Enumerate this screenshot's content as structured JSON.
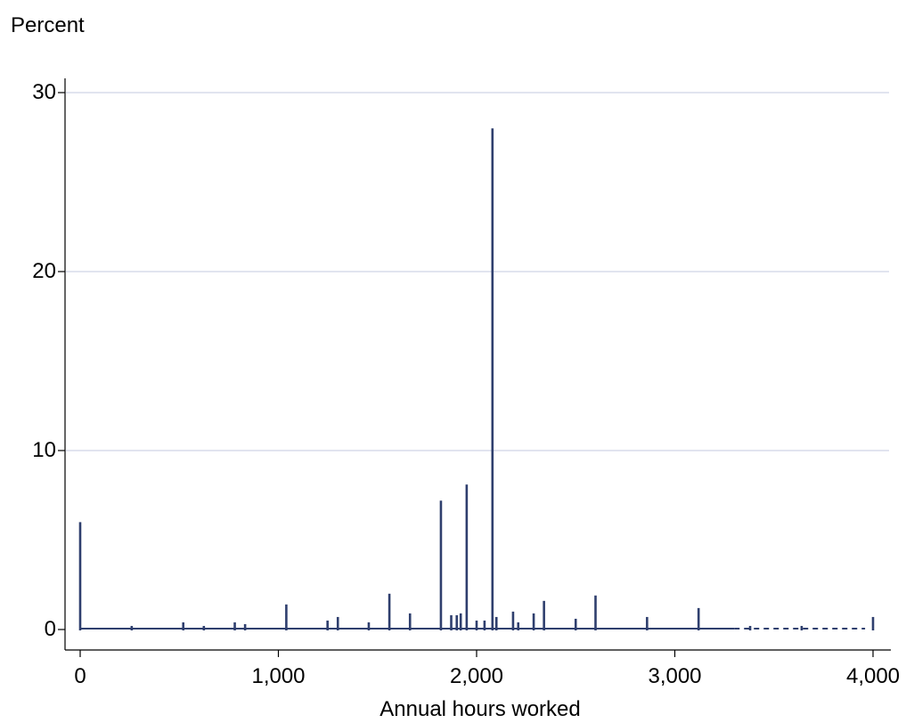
{
  "chart_data": {
    "type": "bar",
    "title": "",
    "ylabel": "Percent",
    "xlabel": "Annual hours worked",
    "xlim": [
      0,
      4000
    ],
    "ylim": [
      0,
      30
    ],
    "xticks": [
      0,
      1000,
      2000,
      3000,
      4000
    ],
    "xtick_labels": [
      "0",
      "1,000",
      "2,000",
      "3,000",
      "4,000"
    ],
    "yticks": [
      0,
      10,
      20,
      30
    ],
    "ytick_labels": [
      "0",
      "10",
      "20",
      "30"
    ],
    "grid": true,
    "legend": "none",
    "bar_color": "#2f3f6e",
    "grid_color": "#e1e4ef",
    "spikes": [
      {
        "x": 0,
        "y": 6.0
      },
      {
        "x": 260,
        "y": 0.2
      },
      {
        "x": 520,
        "y": 0.4
      },
      {
        "x": 624,
        "y": 0.2
      },
      {
        "x": 780,
        "y": 0.4
      },
      {
        "x": 832,
        "y": 0.3
      },
      {
        "x": 1040,
        "y": 1.4
      },
      {
        "x": 1248,
        "y": 0.5
      },
      {
        "x": 1300,
        "y": 0.7
      },
      {
        "x": 1456,
        "y": 0.4
      },
      {
        "x": 1560,
        "y": 2.0
      },
      {
        "x": 1664,
        "y": 0.9
      },
      {
        "x": 1820,
        "y": 7.2
      },
      {
        "x": 1872,
        "y": 0.8
      },
      {
        "x": 1900,
        "y": 0.8
      },
      {
        "x": 1920,
        "y": 0.9
      },
      {
        "x": 1950,
        "y": 8.1
      },
      {
        "x": 2000,
        "y": 0.5
      },
      {
        "x": 2040,
        "y": 0.5
      },
      {
        "x": 2080,
        "y": 28.0
      },
      {
        "x": 2100,
        "y": 0.7
      },
      {
        "x": 2184,
        "y": 1.0
      },
      {
        "x": 2210,
        "y": 0.4
      },
      {
        "x": 2288,
        "y": 0.9
      },
      {
        "x": 2340,
        "y": 1.6
      },
      {
        "x": 2500,
        "y": 0.6
      },
      {
        "x": 2600,
        "y": 1.9
      },
      {
        "x": 2860,
        "y": 0.7
      },
      {
        "x": 3120,
        "y": 1.2
      },
      {
        "x": 3380,
        "y": 0.2
      },
      {
        "x": 3640,
        "y": 0.2
      },
      {
        "x": 4000,
        "y": 0.7
      }
    ],
    "baseline_y": 0.05
  }
}
